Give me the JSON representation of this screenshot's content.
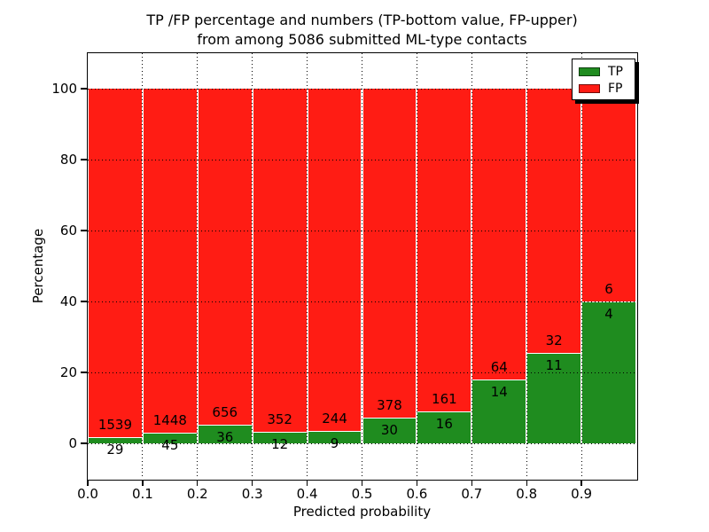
{
  "title": {
    "line1": "TP /FP percentage and numbers (TP-bottom value, FP-upper)",
    "line2": "from among 5086 submitted ML-type contacts"
  },
  "axes": {
    "xlabel": "Predicted probability",
    "ylabel": "Percentage",
    "xticks": [
      0.0,
      0.1,
      0.2,
      0.3,
      0.4,
      0.5,
      0.6,
      0.7,
      0.8,
      0.9
    ],
    "xtick_labels": [
      "0.0",
      "0.1",
      "0.2",
      "0.3",
      "0.4",
      "0.5",
      "0.6",
      "0.7",
      "0.8",
      "0.9"
    ],
    "yticks": [
      0,
      20,
      40,
      60,
      80,
      100
    ],
    "ytick_labels": [
      "0",
      "20",
      "40",
      "60",
      "80",
      "100"
    ],
    "xlim": [
      0.0,
      1.0
    ],
    "ylim": [
      -10,
      110
    ],
    "grid_style": "dotted"
  },
  "legend": {
    "items": [
      {
        "label": "TP",
        "color": "#1f8c1f"
      },
      {
        "label": "FP",
        "color": "#ff1c14"
      }
    ]
  },
  "chart_data": {
    "type": "bar",
    "stacked": true,
    "normalized_to": 100,
    "bin_width": 0.1,
    "tp_color": "#1f8c1f",
    "fp_color": "#ff1c14",
    "bar_edge_color": "#ffffff",
    "bins": [
      {
        "range": [
          0.0,
          0.1
        ],
        "tp": 29,
        "fp": 1539,
        "tp_pct": 1.85,
        "fp_pct": 98.15
      },
      {
        "range": [
          0.1,
          0.2
        ],
        "tp": 45,
        "fp": 1448,
        "tp_pct": 3.01,
        "fp_pct": 96.99
      },
      {
        "range": [
          0.2,
          0.3
        ],
        "tp": 36,
        "fp": 656,
        "tp_pct": 5.2,
        "fp_pct": 94.8
      },
      {
        "range": [
          0.3,
          0.4
        ],
        "tp": 12,
        "fp": 352,
        "tp_pct": 3.3,
        "fp_pct": 96.7
      },
      {
        "range": [
          0.4,
          0.5
        ],
        "tp": 9,
        "fp": 244,
        "tp_pct": 3.56,
        "fp_pct": 96.44
      },
      {
        "range": [
          0.5,
          0.6
        ],
        "tp": 30,
        "fp": 378,
        "tp_pct": 7.35,
        "fp_pct": 92.65
      },
      {
        "range": [
          0.6,
          0.7
        ],
        "tp": 16,
        "fp": 161,
        "tp_pct": 9.04,
        "fp_pct": 90.96
      },
      {
        "range": [
          0.7,
          0.8
        ],
        "tp": 14,
        "fp": 64,
        "tp_pct": 17.95,
        "fp_pct": 82.05
      },
      {
        "range": [
          0.8,
          0.9
        ],
        "tp": 11,
        "fp": 32,
        "tp_pct": 25.58,
        "fp_pct": 74.42
      },
      {
        "range": [
          0.9,
          1.0
        ],
        "tp": 4,
        "fp": 6,
        "tp_pct": 40.0,
        "fp_pct": 60.0
      }
    ]
  }
}
